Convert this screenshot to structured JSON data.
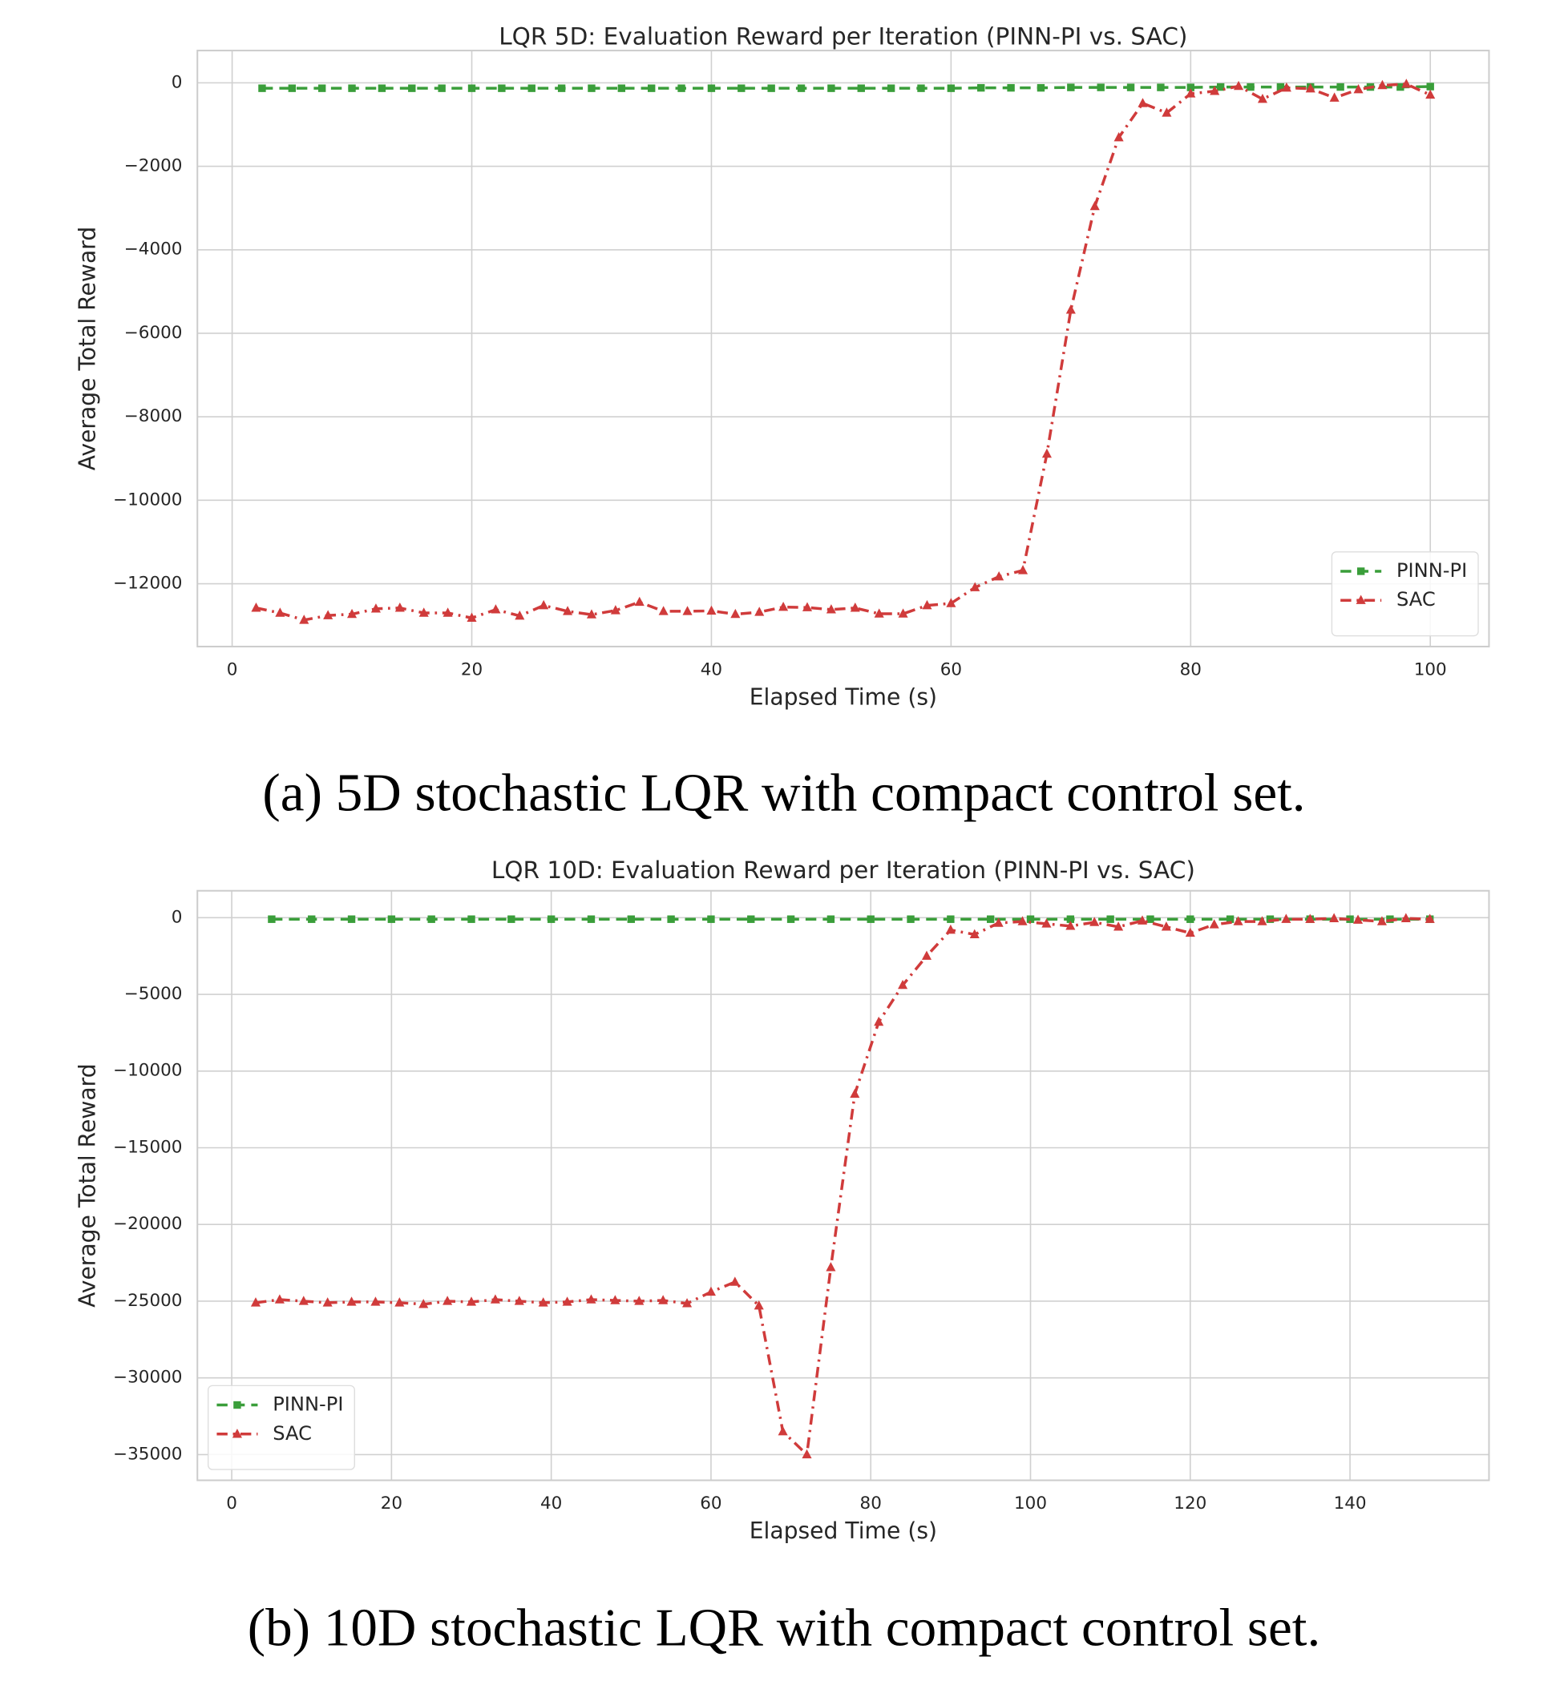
{
  "chart_data": [
    {
      "type": "line",
      "title": "LQR 5D: Evaluation Reward per Iteration (PINN-PI vs. SAC)",
      "x_label": "Elapsed Time (s)",
      "y_label": "Average Total Reward",
      "caption": "(a) 5D stochastic LQR with compact control set.",
      "xlim": [
        -2.9,
        104.9
      ],
      "ylim": [
        -13505,
        773
      ],
      "xticks": [
        0,
        20,
        40,
        60,
        80,
        100
      ],
      "yticks": [
        0,
        {
          "value": -2000,
          "label": "−2000"
        },
        {
          "value": -4000,
          "label": "−4000"
        },
        {
          "value": -6000,
          "label": "−6000"
        },
        {
          "value": -8000,
          "label": "−8000"
        },
        {
          "value": -10000,
          "label": "−10000"
        },
        {
          "value": -12000,
          "label": "−12000"
        }
      ],
      "grid": true,
      "legend": "lower right",
      "series": [
        {
          "name": "PINN-PI",
          "color": "#3a9e3a",
          "marker": "square",
          "dash": "dashed",
          "x": [
            2.5,
            5,
            7.5,
            10,
            12.5,
            15,
            17.5,
            20,
            22.5,
            25,
            27.5,
            30,
            32.5,
            35,
            37.5,
            40,
            42.5,
            45,
            47.5,
            50,
            52.5,
            55,
            57.5,
            60,
            62.5,
            65,
            67.5,
            70,
            72.5,
            75,
            77.5,
            80,
            82.5,
            85,
            87.5,
            90,
            92.5,
            95,
            97.5,
            100
          ],
          "values": [
            -130,
            -130,
            -130,
            -130,
            -130,
            -130,
            -130,
            -130,
            -130,
            -130,
            -130,
            -130,
            -130,
            -130,
            -130,
            -130,
            -130,
            -130,
            -130,
            -130,
            -130,
            -130,
            -130,
            -130,
            -120,
            -120,
            -120,
            -110,
            -110,
            -110,
            -110,
            -110,
            -100,
            -100,
            -100,
            -100,
            -100,
            -100,
            -100,
            -90
          ]
        },
        {
          "name": "SAC",
          "color": "#d03b3b",
          "marker": "triangle",
          "dash": "dashdot",
          "x": [
            2,
            4,
            6,
            8,
            10,
            12,
            14,
            16,
            18,
            20,
            22,
            24,
            26,
            28,
            30,
            32,
            34,
            36,
            38,
            40,
            42,
            44,
            46,
            48,
            50,
            52,
            54,
            56,
            58,
            60,
            62,
            64,
            66,
            68,
            70,
            72,
            74,
            76,
            78,
            80,
            82,
            84,
            86,
            88,
            90,
            92,
            94,
            96,
            98,
            100
          ],
          "values": [
            -12580,
            -12700,
            -12870,
            -12760,
            -12730,
            -12600,
            -12580,
            -12700,
            -12700,
            -12820,
            -12620,
            -12770,
            -12520,
            -12660,
            -12740,
            -12640,
            -12440,
            -12660,
            -12660,
            -12650,
            -12730,
            -12680,
            -12560,
            -12570,
            -12620,
            -12580,
            -12720,
            -12720,
            -12520,
            -12470,
            -12090,
            -11830,
            -11680,
            -8890,
            -5440,
            -2960,
            -1310,
            -490,
            -720,
            -260,
            -200,
            -80,
            -390,
            -120,
            -140,
            -360,
            -160,
            -60,
            -30,
            -290
          ]
        }
      ]
    },
    {
      "type": "line",
      "title": "LQR 10D: Evaluation Reward per Iteration (PINN-PI vs. SAC)",
      "x_label": "Elapsed Time (s)",
      "y_label": "Average Total Reward",
      "caption": "(b) 10D stochastic LQR with compact control set.",
      "xlim": [
        -4.3,
        157.4
      ],
      "ylim": [
        -36676,
        1753
      ],
      "xticks": [
        0,
        20,
        40,
        60,
        80,
        100,
        120,
        140
      ],
      "yticks": [
        0,
        {
          "value": -5000,
          "label": "−5000"
        },
        {
          "value": -10000,
          "label": "−10000"
        },
        {
          "value": -15000,
          "label": "−15000"
        },
        {
          "value": -20000,
          "label": "−20000"
        },
        {
          "value": -25000,
          "label": "−25000"
        },
        {
          "value": -30000,
          "label": "−30000"
        },
        {
          "value": -35000,
          "label": "−35000"
        }
      ],
      "grid": true,
      "legend": "lower left",
      "series": [
        {
          "name": "PINN-PI",
          "color": "#3a9e3a",
          "marker": "square",
          "dash": "dashed",
          "x": [
            5,
            10,
            15,
            20,
            25,
            30,
            35,
            40,
            45,
            50,
            55,
            60,
            65,
            70,
            75,
            80,
            85,
            90,
            95,
            100,
            105,
            110,
            115,
            120,
            125,
            130,
            135,
            140,
            145,
            150
          ],
          "values": [
            -100,
            -100,
            -100,
            -100,
            -100,
            -100,
            -100,
            -100,
            -100,
            -100,
            -100,
            -100,
            -100,
            -100,
            -100,
            -100,
            -100,
            -100,
            -100,
            -100,
            -100,
            -100,
            -100,
            -100,
            -100,
            -100,
            -100,
            -100,
            -100,
            -100
          ]
        },
        {
          "name": "SAC",
          "color": "#d03b3b",
          "marker": "triangle",
          "dash": "dashdot",
          "x": [
            3,
            6,
            9,
            12,
            15,
            18,
            21,
            24,
            27,
            30,
            33,
            36,
            39,
            42,
            45,
            48,
            51,
            54,
            57,
            60,
            63,
            66,
            69,
            72,
            75,
            78,
            81,
            84,
            87,
            90,
            93,
            96,
            99,
            102,
            105,
            108,
            111,
            114,
            117,
            120,
            123,
            126,
            129,
            132,
            135,
            138,
            141,
            144,
            147,
            150
          ],
          "values": [
            -25100,
            -24900,
            -25000,
            -25100,
            -25050,
            -25050,
            -25100,
            -25200,
            -25000,
            -25050,
            -24900,
            -25000,
            -25100,
            -25050,
            -24900,
            -24950,
            -25000,
            -24950,
            -25150,
            -24400,
            -23750,
            -25300,
            -33500,
            -35000,
            -22800,
            -11500,
            -6800,
            -4400,
            -2500,
            -800,
            -1100,
            -350,
            -250,
            -400,
            -550,
            -300,
            -600,
            -200,
            -600,
            -1000,
            -450,
            -250,
            -250,
            -100,
            -100,
            -50,
            -150,
            -250,
            -50,
            -100
          ]
        }
      ]
    }
  ]
}
